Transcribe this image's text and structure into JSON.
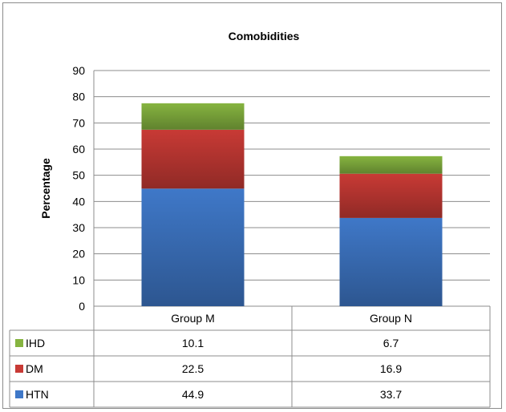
{
  "chart_data": {
    "type": "bar",
    "stacked": true,
    "title": "Comobidities",
    "xlabel": "",
    "ylabel": "Percentage",
    "ylim": [
      0,
      90
    ],
    "yticks": [
      0,
      10,
      20,
      30,
      40,
      50,
      60,
      70,
      80,
      90
    ],
    "grid": true,
    "legend": "data-table",
    "categories": [
      "Group M",
      "Group N"
    ],
    "series": [
      {
        "name": "HTN",
        "color": "#3f78c8",
        "values": [
          44.9,
          33.7
        ],
        "labels": [
          "44.9",
          "33.7"
        ]
      },
      {
        "name": "DM",
        "color": "#c83a35",
        "values": [
          22.5,
          16.9
        ],
        "labels": [
          "22.5",
          "16.9"
        ]
      },
      {
        "name": "IHD",
        "color": "#86b440",
        "values": [
          10.1,
          6.7
        ],
        "labels": [
          "10.1",
          "6.7"
        ]
      }
    ]
  }
}
